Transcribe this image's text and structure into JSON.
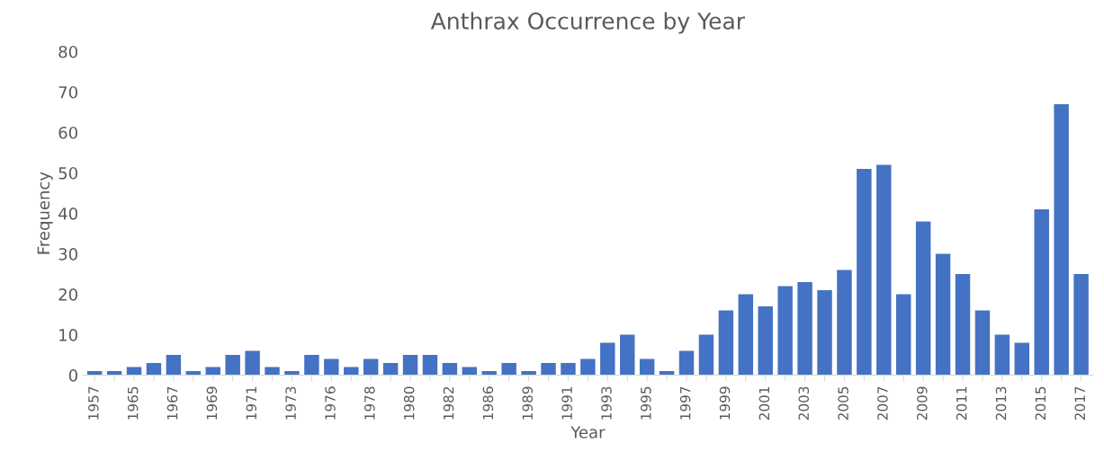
{
  "chart_data": {
    "type": "bar",
    "title": "Anthrax Occurrence by Year",
    "xlabel": "Year",
    "ylabel": "Frequency",
    "categories": [
      "1957",
      null,
      "1965",
      null,
      "1967",
      null,
      "1969",
      null,
      "1971",
      null,
      "1973",
      null,
      "1976",
      null,
      "1978",
      null,
      "1980",
      null,
      "1982",
      null,
      "1986",
      null,
      "1989",
      null,
      "1991",
      null,
      "1993",
      null,
      "1995",
      null,
      "1997",
      null,
      "1999",
      null,
      "2001",
      null,
      "2003",
      null,
      "2005",
      null,
      "2007",
      null,
      "2009",
      null,
      "2011",
      null,
      "2013",
      null,
      "2015",
      null,
      "2017"
    ],
    "values": [
      1,
      1,
      2,
      3,
      5,
      1,
      2,
      5,
      6,
      2,
      1,
      5,
      4,
      2,
      4,
      3,
      5,
      5,
      3,
      2,
      1,
      3,
      1,
      3,
      3,
      4,
      8,
      10,
      4,
      1,
      6,
      10,
      16,
      20,
      17,
      22,
      23,
      21,
      26,
      51,
      52,
      20,
      38,
      30,
      25,
      16,
      10,
      8,
      41,
      67,
      25
    ],
    "color": "#4472c4",
    "ylim": [
      0,
      80
    ],
    "yticks": [
      0,
      10,
      20,
      30,
      40,
      50,
      60,
      70,
      80
    ],
    "grid": false,
    "legend": false
  }
}
